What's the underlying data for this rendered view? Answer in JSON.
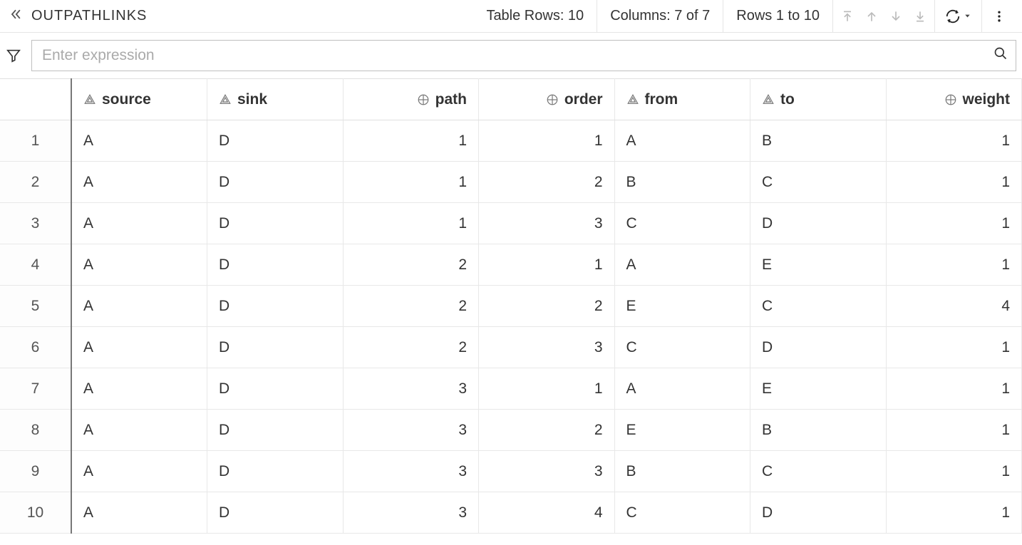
{
  "header": {
    "title": "OUTPATHLINKS",
    "table_rows": "Table Rows: 10",
    "columns_info": "Columns: 7 of 7",
    "rows_range": "Rows 1 to 10"
  },
  "filter": {
    "placeholder": "Enter expression"
  },
  "table": {
    "columns": [
      {
        "label": "source",
        "type": "text",
        "align": "left"
      },
      {
        "label": "sink",
        "type": "text",
        "align": "left"
      },
      {
        "label": "path",
        "type": "number",
        "align": "right"
      },
      {
        "label": "order",
        "type": "number",
        "align": "right"
      },
      {
        "label": "from",
        "type": "text",
        "align": "left"
      },
      {
        "label": "to",
        "type": "text",
        "align": "left"
      },
      {
        "label": "weight",
        "type": "number",
        "align": "right"
      }
    ],
    "rows": [
      [
        "A",
        "D",
        "1",
        "1",
        "A",
        "B",
        "1"
      ],
      [
        "A",
        "D",
        "1",
        "2",
        "B",
        "C",
        "1"
      ],
      [
        "A",
        "D",
        "1",
        "3",
        "C",
        "D",
        "1"
      ],
      [
        "A",
        "D",
        "2",
        "1",
        "A",
        "E",
        "1"
      ],
      [
        "A",
        "D",
        "2",
        "2",
        "E",
        "C",
        "4"
      ],
      [
        "A",
        "D",
        "2",
        "3",
        "C",
        "D",
        "1"
      ],
      [
        "A",
        "D",
        "3",
        "1",
        "A",
        "E",
        "1"
      ],
      [
        "A",
        "D",
        "3",
        "2",
        "E",
        "B",
        "1"
      ],
      [
        "A",
        "D",
        "3",
        "3",
        "B",
        "C",
        "1"
      ],
      [
        "A",
        "D",
        "3",
        "4",
        "C",
        "D",
        "1"
      ]
    ]
  },
  "colors": {
    "border": "#e8e8e8",
    "text": "#333333",
    "muted": "#aaaaaa",
    "rownum_border": "#777777"
  }
}
